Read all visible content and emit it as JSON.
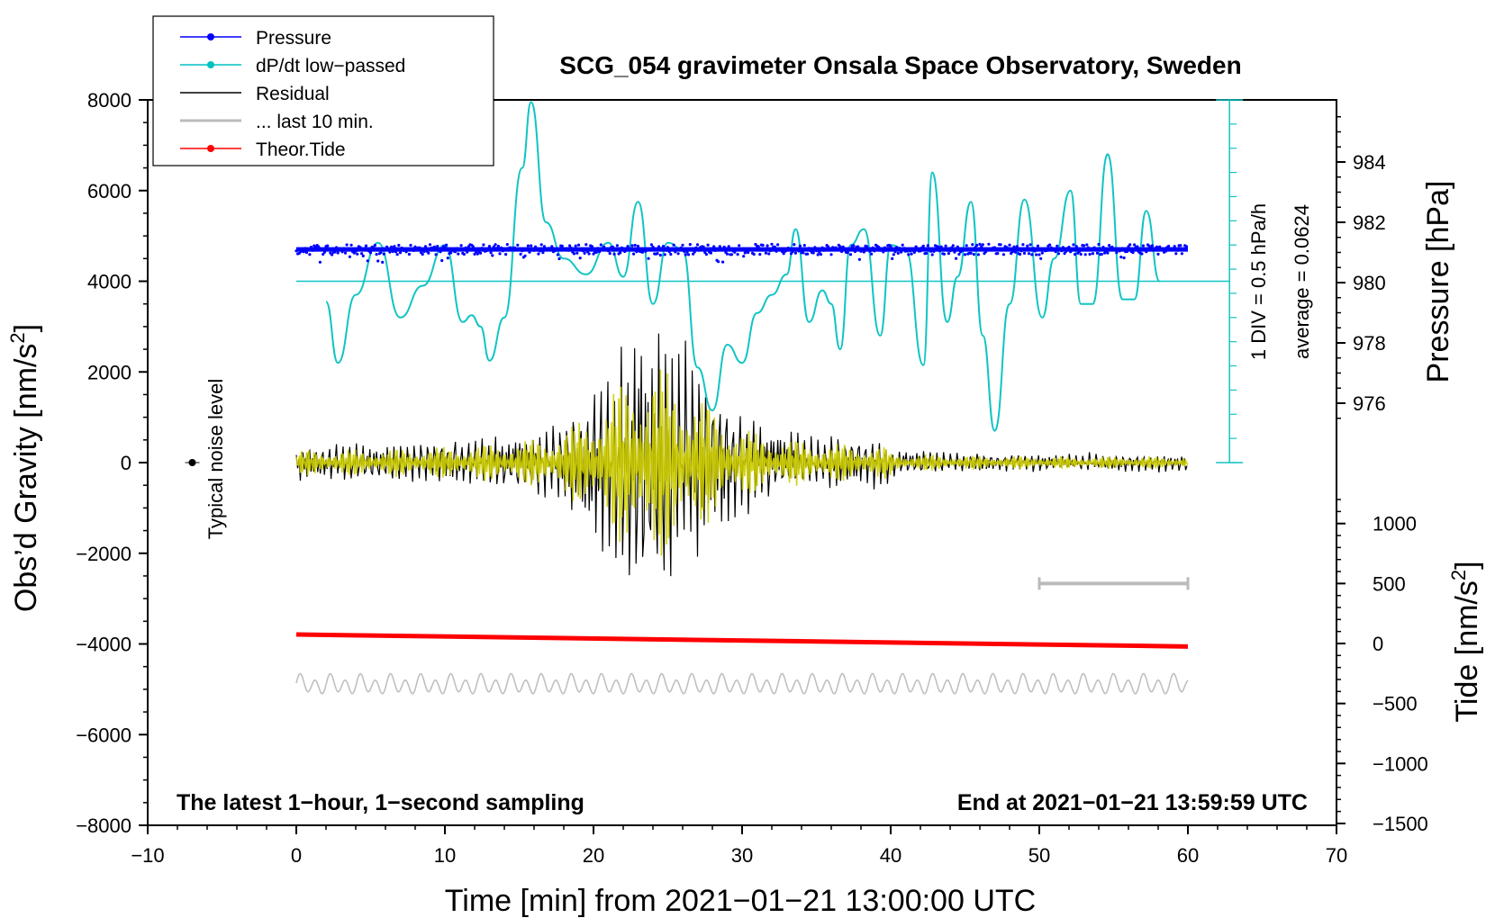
{
  "chart_data": {
    "type": "line",
    "title": "SCG_054 gravimeter Onsala Space Observatory, Sweden",
    "xlabel": "Time [min] from 2021−01−21 13:00:00 UTC",
    "ylabel": "Obs’d Gravity [nm/s²]",
    "ylabel_text": "Obs’d Gravity [nm/s",
    "ylabel_unit_tail": "]",
    "y_right_pressure_label": "Pressure [hPa]",
    "y_right_tide_label_text": "Tide [nm/s",
    "y_right_tide_label_tail": "]",
    "superscript": "2",
    "xlim": [
      -10,
      70
    ],
    "ylim": [
      -8000,
      8000
    ],
    "x_ticks": [
      {
        "value": -10,
        "label": "−10"
      },
      {
        "value": 0,
        "label": "0"
      },
      {
        "value": 10,
        "label": "10"
      },
      {
        "value": 20,
        "label": "20"
      },
      {
        "value": 30,
        "label": "30"
      },
      {
        "value": 40,
        "label": "40"
      },
      {
        "value": 50,
        "label": "50"
      },
      {
        "value": 60,
        "label": "60"
      },
      {
        "value": 70,
        "label": "70"
      }
    ],
    "y_ticks": [
      {
        "value": 8000,
        "label": "8000"
      },
      {
        "value": 6000,
        "label": "6000"
      },
      {
        "value": 4000,
        "label": "4000"
      },
      {
        "value": 2000,
        "label": "2000"
      },
      {
        "value": 0,
        "label": "0"
      },
      {
        "value": -2000,
        "label": "−2000"
      },
      {
        "value": -4000,
        "label": "−4000"
      },
      {
        "value": -6000,
        "label": "−6000"
      },
      {
        "value": -8000,
        "label": "−8000"
      }
    ],
    "pressure_axis": {
      "ylim": [
        974,
        986
      ],
      "ticks": [
        {
          "value": 984,
          "label": "984"
        },
        {
          "value": 982,
          "label": "982"
        },
        {
          "value": 980,
          "label": "980"
        },
        {
          "value": 978,
          "label": "978"
        },
        {
          "value": 976,
          "label": "976"
        }
      ]
    },
    "tide_axis": {
      "ylim": [
        -1500,
        1500
      ],
      "ticks": [
        {
          "value": 1000,
          "label": "1000"
        },
        {
          "value": 500,
          "label": "500"
        },
        {
          "value": 0,
          "label": "0"
        },
        {
          "value": -500,
          "label": "−500"
        },
        {
          "value": -1000,
          "label": "−1000"
        },
        {
          "value": -1500,
          "label": "−1500"
        }
      ]
    },
    "legend": [
      {
        "label": "Pressure",
        "color": "#0000ff",
        "marker": true
      },
      {
        "label": "dP/dt low−passed",
        "color": "#00c0c0",
        "marker": true
      },
      {
        "label": "Residual",
        "color": "#000000",
        "marker": false
      },
      {
        "label": "... last 10 min.",
        "color": "#bbbbbb",
        "marker": false
      },
      {
        "label": "Theor.Tide",
        "color": "#ff0000",
        "marker": true
      }
    ],
    "annotations": {
      "noise_label": "Typical noise level",
      "dpdt_scale": "1 DIV = 0.5 hPa/h",
      "dpdt_average": "average = 0.0624",
      "bottom_left": "The latest 1−hour, 1−second sampling",
      "bottom_right": "End at 2021−01−21 13:59:59 UTC"
    },
    "colors": {
      "pressure": "#0000ff",
      "dpdt": "#11c4c4",
      "residual": "#000000",
      "filtered": "#cccc00",
      "last10": "#c0c0c0",
      "tide": "#ff0000"
    },
    "series": [
      {
        "name": "dP/dt low-passed",
        "axis": "gravity",
        "x": [
          2,
          2.8,
          4,
          5.5,
          7,
          8.5,
          10,
          11.2,
          11.8,
          12.4,
          13,
          14,
          15.2,
          15.8,
          16.8,
          18,
          19.5,
          21,
          22,
          23,
          24,
          25,
          26,
          27,
          28,
          29,
          30,
          31,
          32,
          33,
          33.6,
          34.5,
          35.4,
          36,
          36.6,
          37.3,
          38.2,
          39.3,
          40,
          41,
          42.2,
          42.8,
          43.8,
          44.5,
          45.4,
          46.2,
          47,
          48,
          49,
          50.2,
          51,
          52.1,
          52.8,
          53.6,
          54.6,
          55.6,
          56.4,
          57.2,
          58.1
        ],
        "values": [
          3550,
          2200,
          3700,
          4850,
          3200,
          3900,
          4800,
          3100,
          3250,
          3000,
          2250,
          3200,
          6500,
          7950,
          5300,
          4500,
          4150,
          4850,
          4100,
          5750,
          3500,
          4850,
          4700,
          2100,
          1150,
          2600,
          2200,
          3300,
          3700,
          4150,
          5150,
          3100,
          3800,
          3500,
          2500,
          4800,
          5150,
          2800,
          4800,
          4700,
          2150,
          6400,
          3100,
          4100,
          5750,
          2800,
          700,
          3500,
          5800,
          3200,
          4500,
          6000,
          3500,
          3500,
          6800,
          3600,
          3600,
          5550,
          4000
        ]
      },
      {
        "name": "Pressure",
        "axis": "pressure",
        "x": [
          0,
          60
        ],
        "values": [
          981.1,
          981.1
        ]
      },
      {
        "name": "Theor.Tide",
        "axis": "tide",
        "x": [
          0,
          60
        ],
        "values": [
          75,
          -25
        ]
      },
      {
        "name": "Residual",
        "axis": "gravity",
        "x_range": [
          0,
          60
        ],
        "peak_min": 24,
        "max_amplitude": 3000
      },
      {
        "name": "... last 10 min.",
        "axis": "gravity",
        "x_range": [
          0,
          60
        ],
        "baseline": -4900,
        "amplitude": 250
      }
    ],
    "dpdt_baseline": 4000,
    "noise_level": {
      "x": -7,
      "y": 0
    },
    "scale_bar": {
      "x": [
        50,
        60
      ],
      "tide_value": 500
    }
  }
}
